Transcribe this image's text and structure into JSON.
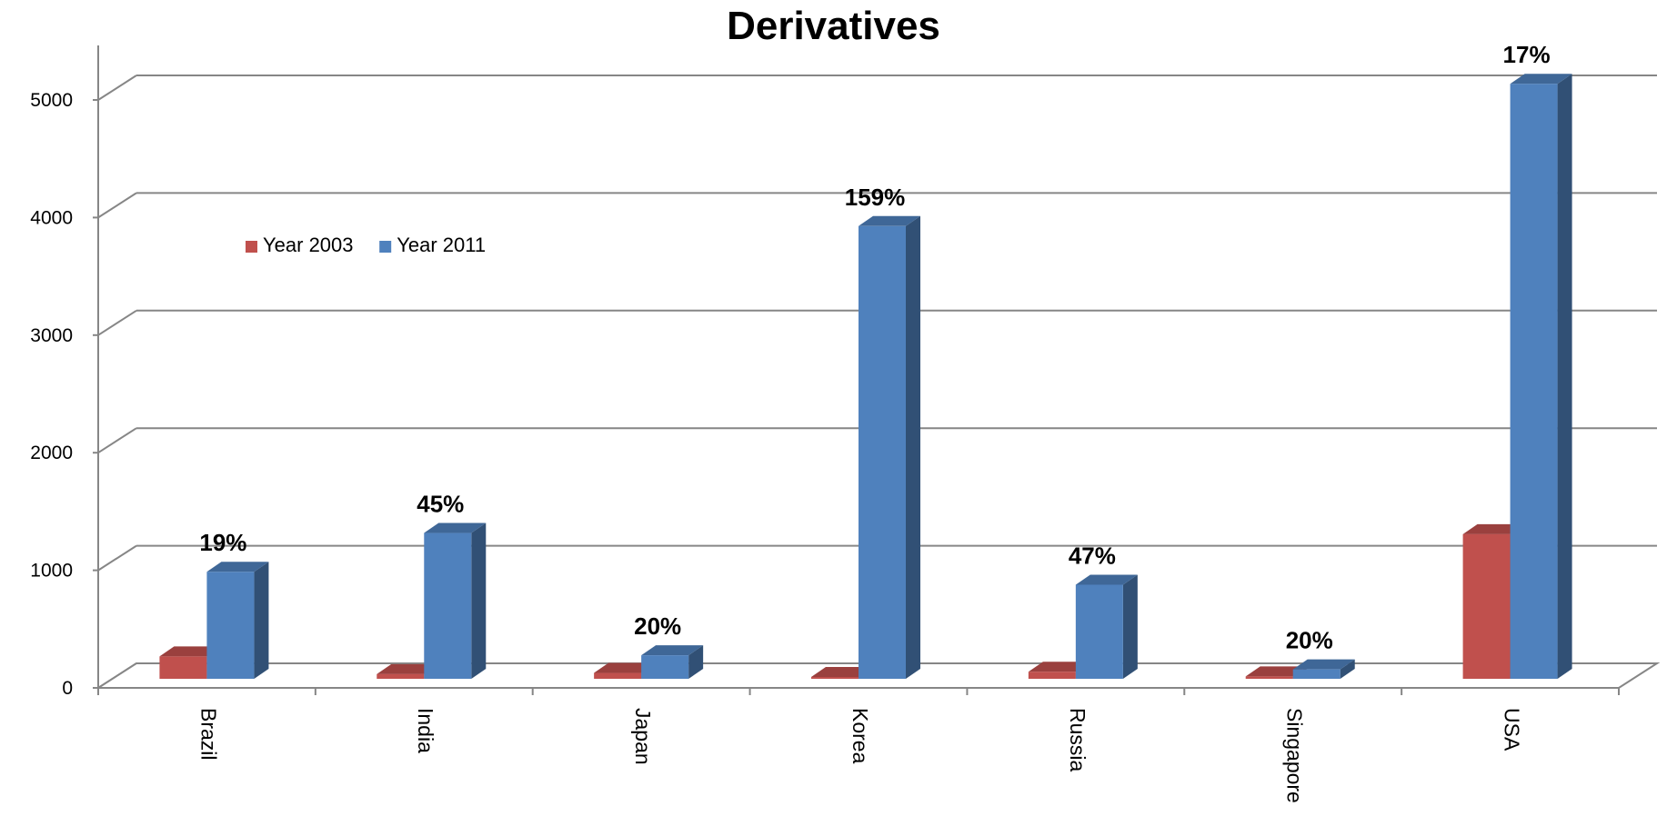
{
  "chart_data": {
    "type": "bar",
    "title": "Derivatives",
    "xlabel": "",
    "ylabel": "",
    "ylim": [
      0,
      5000
    ],
    "yticks": [
      "0",
      "1000",
      "2000",
      "3000",
      "4000",
      "5000"
    ],
    "categories": [
      "Brazil",
      "India",
      "Japan",
      "Korea",
      "Russia",
      "Singapore",
      "USA"
    ],
    "series": [
      {
        "name": "Year 2003",
        "color": "#C0504D",
        "values": [
          190,
          40,
          50,
          10,
          60,
          20,
          1230
        ]
      },
      {
        "name": "Year 2011",
        "color": "#4F81BD",
        "values": [
          910,
          1240,
          200,
          3850,
          800,
          80,
          5060
        ]
      }
    ],
    "data_labels": [
      "19%",
      "45%",
      "20%",
      "159%",
      "47%",
      "20%",
      "17%"
    ],
    "grid": true,
    "legend_position": "top-left",
    "style": "3d-clustered-column"
  }
}
